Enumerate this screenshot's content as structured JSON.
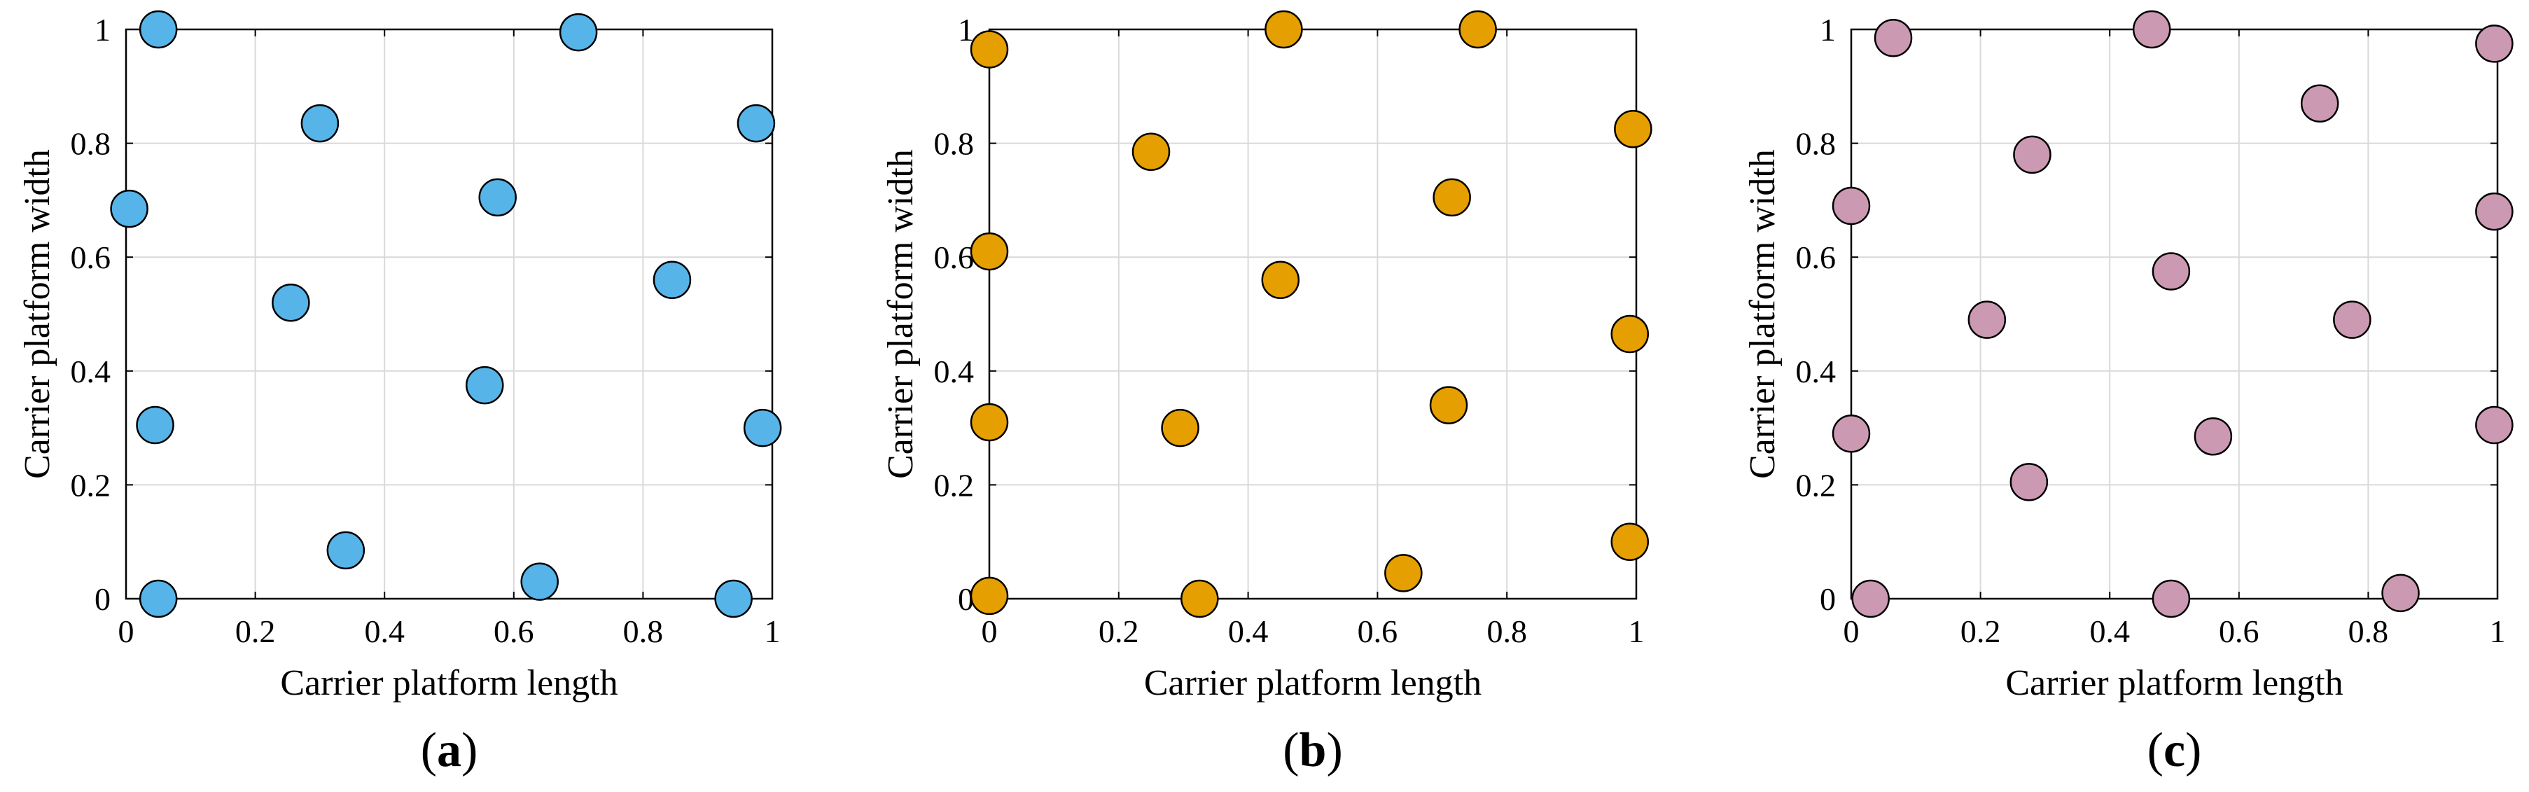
{
  "chart_data": [
    {
      "type": "scatter",
      "panel_label": {
        "open": "(",
        "letter": "a",
        "close": ")"
      },
      "xlabel": "Carrier platform length",
      "ylabel": "Carrier platform width",
      "xlim": [
        0,
        1
      ],
      "ylim": [
        0,
        1
      ],
      "x_ticks": [
        0,
        0.2,
        0.4,
        0.6,
        0.8,
        1
      ],
      "y_ticks": [
        0,
        0.2,
        0.4,
        0.6,
        0.8,
        1
      ],
      "x_tick_labels": [
        "0",
        "0.2",
        "0.4",
        "0.6",
        "0.8",
        "1"
      ],
      "y_tick_labels": [
        "0",
        "0.2",
        "0.4",
        "0.6",
        "0.8",
        "1"
      ],
      "grid": true,
      "marker_color": "#56B4E9",
      "points": [
        {
          "x": 0.05,
          "y": 1.0
        },
        {
          "x": 0.7,
          "y": 0.995
        },
        {
          "x": 0.3,
          "y": 0.835
        },
        {
          "x": 0.975,
          "y": 0.835
        },
        {
          "x": 0.575,
          "y": 0.705
        },
        {
          "x": 0.005,
          "y": 0.685
        },
        {
          "x": 0.845,
          "y": 0.56
        },
        {
          "x": 0.255,
          "y": 0.52
        },
        {
          "x": 0.555,
          "y": 0.375
        },
        {
          "x": 0.045,
          "y": 0.305
        },
        {
          "x": 0.985,
          "y": 0.3
        },
        {
          "x": 0.34,
          "y": 0.085
        },
        {
          "x": 0.64,
          "y": 0.03
        },
        {
          "x": 0.05,
          "y": 0.0
        },
        {
          "x": 0.94,
          "y": 0.0
        }
      ]
    },
    {
      "type": "scatter",
      "panel_label": {
        "open": "(",
        "letter": "b",
        "close": ")"
      },
      "xlabel": "Carrier platform length",
      "ylabel": "Carrier platform width",
      "xlim": [
        0,
        1
      ],
      "ylim": [
        0,
        1
      ],
      "x_ticks": [
        0,
        0.2,
        0.4,
        0.6,
        0.8,
        1
      ],
      "y_ticks": [
        0,
        0.2,
        0.4,
        0.6,
        0.8,
        1
      ],
      "x_tick_labels": [
        "0",
        "0.2",
        "0.4",
        "0.6",
        "0.8",
        "1"
      ],
      "y_tick_labels": [
        "0",
        "0.2",
        "0.4",
        "0.6",
        "0.8",
        "1"
      ],
      "grid": true,
      "marker_color": "#E69F00",
      "points": [
        {
          "x": 0.0,
          "y": 0.965
        },
        {
          "x": 0.455,
          "y": 1.0
        },
        {
          "x": 0.755,
          "y": 1.0
        },
        {
          "x": 0.995,
          "y": 0.825
        },
        {
          "x": 0.25,
          "y": 0.785
        },
        {
          "x": 0.715,
          "y": 0.705
        },
        {
          "x": 0.0,
          "y": 0.61
        },
        {
          "x": 0.45,
          "y": 0.56
        },
        {
          "x": 0.99,
          "y": 0.465
        },
        {
          "x": 0.0,
          "y": 0.31
        },
        {
          "x": 0.295,
          "y": 0.3
        },
        {
          "x": 0.71,
          "y": 0.34
        },
        {
          "x": 0.99,
          "y": 0.1
        },
        {
          "x": 0.64,
          "y": 0.045
        },
        {
          "x": 0.0,
          "y": 0.005
        },
        {
          "x": 0.325,
          "y": 0.0
        }
      ]
    },
    {
      "type": "scatter",
      "panel_label": {
        "open": "(",
        "letter": "c",
        "close": ")"
      },
      "xlabel": "Carrier platform length",
      "ylabel": "Carrier platform width",
      "xlim": [
        0,
        1
      ],
      "ylim": [
        0,
        1
      ],
      "x_ticks": [
        0,
        0.2,
        0.4,
        0.6,
        0.8,
        1
      ],
      "y_ticks": [
        0,
        0.2,
        0.4,
        0.6,
        0.8,
        1
      ],
      "x_tick_labels": [
        "0",
        "0.2",
        "0.4",
        "0.6",
        "0.8",
        "1"
      ],
      "y_tick_labels": [
        "0",
        "0.2",
        "0.4",
        "0.6",
        "0.8",
        "1"
      ],
      "grid": true,
      "marker_color": "#CC99B3",
      "points": [
        {
          "x": 0.065,
          "y": 0.985
        },
        {
          "x": 0.465,
          "y": 1.0
        },
        {
          "x": 0.995,
          "y": 0.975
        },
        {
          "x": 0.725,
          "y": 0.87
        },
        {
          "x": 0.28,
          "y": 0.78
        },
        {
          "x": 0.0,
          "y": 0.69
        },
        {
          "x": 0.995,
          "y": 0.68
        },
        {
          "x": 0.495,
          "y": 0.575
        },
        {
          "x": 0.21,
          "y": 0.49
        },
        {
          "x": 0.775,
          "y": 0.49
        },
        {
          "x": 0.0,
          "y": 0.29
        },
        {
          "x": 0.995,
          "y": 0.305
        },
        {
          "x": 0.56,
          "y": 0.285
        },
        {
          "x": 0.275,
          "y": 0.205
        },
        {
          "x": 0.03,
          "y": 0.0
        },
        {
          "x": 0.495,
          "y": 0.0
        },
        {
          "x": 0.85,
          "y": 0.01
        }
      ]
    }
  ]
}
